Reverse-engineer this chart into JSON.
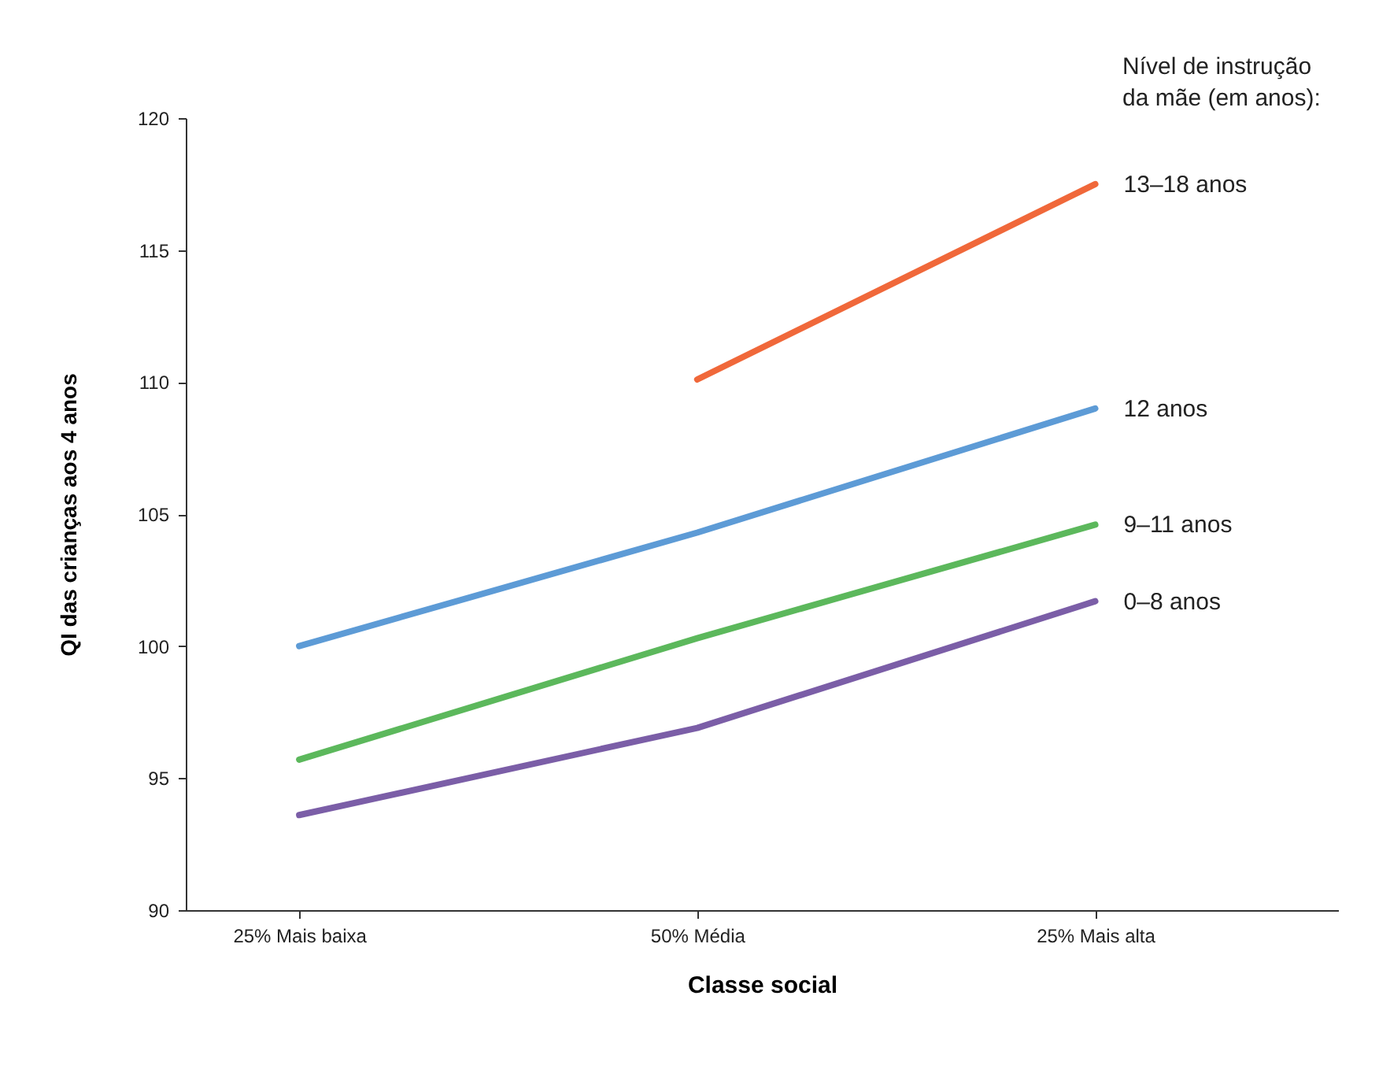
{
  "chart_data": {
    "type": "line",
    "xlabel": "Classe social",
    "ylabel": "QI das crianças aos 4 anos",
    "legend_title": "Nível de instrução\nda mãe (em anos):",
    "categories": [
      "25% Mais baixa",
      "50% Média",
      "25% Mais alta"
    ],
    "series": [
      {
        "name": "13–18 anos",
        "color": "#f0683a",
        "values": [
          null,
          110.1,
          117.5
        ]
      },
      {
        "name": "12 anos",
        "color": "#5d9bd6",
        "values": [
          100,
          104.3,
          109
        ]
      },
      {
        "name": "9–11 anos",
        "color": "#5cb85c",
        "values": [
          95.7,
          100.3,
          104.6
        ]
      },
      {
        "name": "0–8 anos",
        "color": "#7b5ea7",
        "values": [
          93.6,
          96.9,
          101.7
        ]
      }
    ],
    "ylim": [
      90,
      120
    ],
    "yticks": [
      90,
      95,
      100,
      105,
      110,
      115,
      120
    ],
    "grid": false,
    "marker": "none",
    "line_style": "solid"
  }
}
